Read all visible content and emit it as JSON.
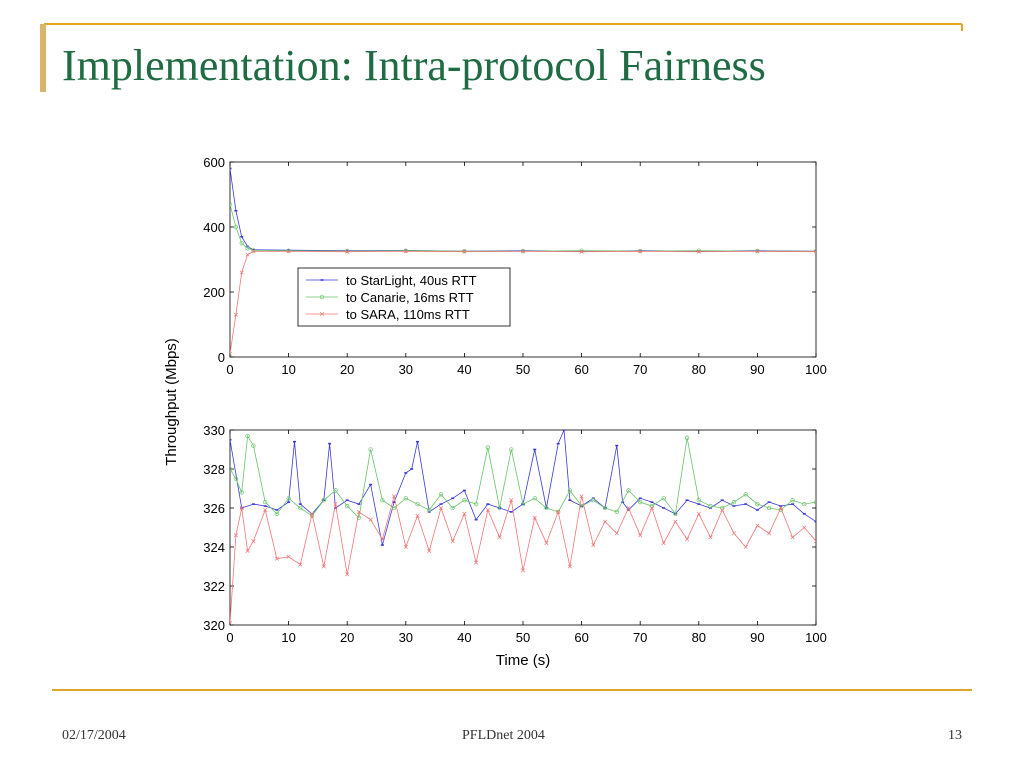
{
  "slide": {
    "title": "Implementation: Intra-protocol Fairness",
    "footer_date": "02/17/2004",
    "footer_center": "PFLDnet 2004",
    "page_number": "13",
    "colors": {
      "title": "#1f6b43",
      "accent_line": "#e0a526",
      "left_bar": "#d9b46b"
    }
  },
  "chart_data": [
    {
      "type": "line",
      "title": "",
      "xlabel": "",
      "ylabel": "Throughput (Mbps)",
      "xlim": [
        0,
        100
      ],
      "ylim": [
        0,
        600
      ],
      "xticks": [
        0,
        10,
        20,
        30,
        40,
        50,
        60,
        70,
        80,
        90,
        100
      ],
      "yticks": [
        0,
        200,
        400,
        600
      ],
      "grid": false,
      "legend": {
        "placement": "inside-left-middle"
      },
      "series": [
        {
          "name": "to StarLight, 40us RTT",
          "color": "#3a3adb",
          "marker": "dot",
          "x": [
            0,
            1,
            2,
            3,
            4,
            10,
            20,
            30,
            40,
            50,
            60,
            70,
            80,
            90,
            100
          ],
          "y": [
            580,
            450,
            370,
            340,
            330,
            329,
            327,
            328,
            326,
            327,
            326,
            327,
            326,
            327,
            326
          ]
        },
        {
          "name": "to Canarie, 16ms RTT",
          "color": "#6ac46a",
          "marker": "circle",
          "x": [
            0,
            1,
            2,
            3,
            4,
            10,
            20,
            30,
            40,
            50,
            60,
            70,
            80,
            90,
            100
          ],
          "y": [
            470,
            400,
            350,
            335,
            328,
            327,
            326,
            327,
            326,
            326,
            327,
            326,
            327,
            326,
            326
          ]
        },
        {
          "name": "to SARA, 110ms RTT",
          "color": "#f07878",
          "marker": "x",
          "x": [
            0,
            1,
            2,
            3,
            4,
            10,
            20,
            30,
            40,
            50,
            60,
            70,
            80,
            90,
            100
          ],
          "y": [
            10,
            130,
            260,
            315,
            325,
            325,
            324,
            325,
            324,
            325,
            324,
            325,
            324,
            325,
            324
          ]
        }
      ]
    },
    {
      "type": "line",
      "title": "",
      "xlabel": "Time (s)",
      "ylabel": "Throughput (Mbps)",
      "xlim": [
        0,
        100
      ],
      "ylim": [
        320,
        330
      ],
      "xticks": [
        0,
        10,
        20,
        30,
        40,
        50,
        60,
        70,
        80,
        90,
        100
      ],
      "yticks": [
        320,
        322,
        324,
        326,
        328,
        330
      ],
      "grid": false,
      "series": [
        {
          "name": "to StarLight, 40us RTT",
          "color": "#3a3adb",
          "marker": "dot",
          "x": [
            0,
            2,
            4,
            6,
            8,
            10,
            11,
            12,
            14,
            16,
            17,
            18,
            20,
            22,
            24,
            26,
            28,
            30,
            31,
            32,
            34,
            36,
            38,
            40,
            42,
            44,
            46,
            48,
            50,
            52,
            54,
            56,
            57,
            58,
            60,
            62,
            64,
            66,
            67,
            68,
            70,
            72,
            74,
            76,
            78,
            80,
            82,
            84,
            86,
            88,
            90,
            92,
            94,
            96,
            98,
            100
          ],
          "y": [
            329.5,
            326.0,
            326.2,
            326.1,
            325.9,
            326.3,
            329.4,
            326.2,
            325.7,
            326.4,
            329.3,
            326.0,
            326.4,
            326.2,
            327.2,
            324.1,
            326.3,
            327.8,
            328.0,
            329.4,
            325.8,
            326.2,
            326.5,
            326.9,
            325.4,
            326.2,
            326.0,
            325.8,
            326.2,
            329.0,
            326.0,
            329.3,
            330.0,
            326.4,
            326.1,
            326.5,
            326.0,
            329.2,
            326.3,
            325.9,
            326.5,
            326.3,
            326.0,
            325.7,
            326.4,
            326.2,
            326.0,
            326.4,
            326.1,
            326.2,
            325.9,
            326.3,
            326.1,
            326.2,
            325.7,
            325.3
          ]
        },
        {
          "name": "to Canarie, 16ms RTT",
          "color": "#6ac46a",
          "marker": "circle",
          "x": [
            0,
            1,
            2,
            3,
            4,
            6,
            8,
            10,
            12,
            14,
            16,
            18,
            20,
            22,
            24,
            26,
            28,
            30,
            32,
            34,
            36,
            38,
            40,
            42,
            44,
            46,
            48,
            50,
            52,
            54,
            56,
            58,
            60,
            62,
            64,
            66,
            68,
            70,
            72,
            74,
            76,
            78,
            80,
            82,
            84,
            86,
            88,
            90,
            92,
            94,
            96,
            98,
            100
          ],
          "y": [
            328.0,
            327.5,
            326.8,
            329.7,
            329.2,
            326.3,
            325.7,
            326.5,
            326.0,
            325.6,
            326.4,
            326.9,
            326.1,
            325.5,
            329.0,
            326.4,
            326.0,
            326.5,
            326.2,
            325.9,
            326.7,
            326.0,
            326.4,
            326.2,
            329.1,
            326.0,
            329.0,
            326.2,
            326.5,
            326.0,
            325.8,
            326.9,
            326.1,
            326.4,
            326.0,
            325.8,
            326.9,
            326.3,
            326.1,
            326.5,
            325.7,
            329.6,
            326.4,
            326.1,
            326.0,
            326.3,
            326.7,
            326.2,
            326.0,
            325.9,
            326.4,
            326.2,
            326.3
          ]
        },
        {
          "name": "to SARA, 110ms RTT",
          "color": "#f07878",
          "marker": "x",
          "x": [
            0,
            1,
            2,
            3,
            4,
            6,
            8,
            10,
            12,
            14,
            16,
            18,
            20,
            22,
            24,
            26,
            28,
            30,
            32,
            34,
            36,
            38,
            40,
            42,
            44,
            46,
            48,
            50,
            52,
            54,
            56,
            58,
            60,
            62,
            64,
            66,
            68,
            70,
            72,
            74,
            76,
            78,
            80,
            82,
            84,
            86,
            88,
            90,
            92,
            94,
            96,
            98,
            100
          ],
          "y": [
            320.1,
            324.6,
            326.0,
            323.8,
            324.3,
            325.9,
            323.4,
            323.5,
            323.1,
            325.7,
            323.0,
            326.2,
            322.6,
            325.8,
            325.4,
            324.4,
            326.6,
            324.0,
            325.6,
            323.8,
            326.0,
            324.3,
            325.7,
            323.2,
            325.9,
            324.5,
            326.4,
            322.8,
            325.5,
            324.2,
            325.8,
            323.0,
            326.6,
            324.1,
            325.3,
            324.7,
            326.0,
            324.6,
            326.0,
            324.2,
            325.3,
            324.4,
            325.7,
            324.5,
            325.9,
            324.7,
            324.0,
            325.1,
            324.7,
            326.0,
            324.5,
            325.0,
            324.3
          ]
        }
      ]
    }
  ]
}
